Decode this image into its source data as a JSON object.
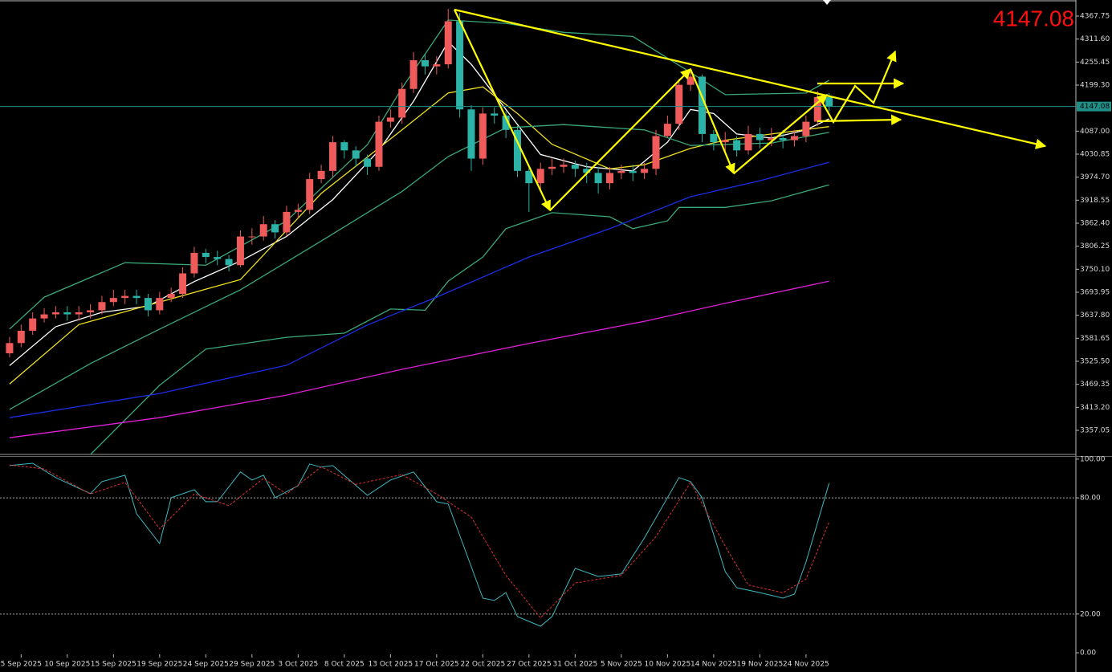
{
  "chart_data": [
    {
      "type": "candlestick",
      "x": [
        0,
        1,
        2,
        3,
        4,
        5,
        6,
        7,
        8,
        9,
        10,
        11,
        12,
        13,
        14,
        15,
        16,
        17,
        18,
        19,
        20,
        21,
        22,
        23,
        24,
        25,
        26,
        27,
        28,
        29,
        30,
        31,
        32,
        33,
        34,
        35,
        36,
        37,
        38,
        39,
        40,
        41,
        42,
        43,
        44,
        45,
        46,
        47,
        48,
        49,
        50,
        51,
        52,
        53,
        54,
        55,
        56,
        57,
        58,
        59,
        60,
        61,
        62,
        63,
        64,
        65,
        66,
        67,
        68,
        69,
        70,
        71
      ],
      "open": [
        3545,
        3570,
        3600,
        3630,
        3640,
        3645,
        3640,
        3645,
        3650,
        3670,
        3680,
        3685,
        3680,
        3650,
        3680,
        3690,
        3740,
        3790,
        3780,
        3775,
        3760,
        3830,
        3830,
        3860,
        3840,
        3890,
        3895,
        3970,
        3990,
        4060,
        4040,
        4020,
        4000,
        4110,
        4120,
        4190,
        4260,
        4245,
        4250,
        4355,
        4140,
        4020,
        4130,
        4125,
        4090,
        3990,
        3960,
        3995,
        4000,
        4005,
        3995,
        3985,
        3960,
        3985,
        3990,
        3985,
        3995,
        4075,
        4105,
        4200,
        4220,
        4080,
        4060,
        4065,
        4040,
        4080,
        4065,
        4070,
        4065,
        4075,
        4110,
        4170
      ],
      "high": [
        3585,
        3615,
        3645,
        3655,
        3660,
        3660,
        3660,
        3665,
        3685,
        3700,
        3700,
        3700,
        3690,
        3695,
        3705,
        3755,
        3805,
        3800,
        3795,
        3785,
        3845,
        3850,
        3880,
        3870,
        3905,
        3910,
        3985,
        4005,
        4075,
        4065,
        4050,
        4030,
        4125,
        4140,
        4205,
        4280,
        4275,
        4270,
        4385,
        4375,
        4150,
        4145,
        4145,
        4135,
        4100,
        4000,
        4010,
        4020,
        4020,
        4015,
        4010,
        4000,
        4000,
        4005,
        4005,
        4010,
        4090,
        4125,
        4215,
        4235,
        4225,
        4090,
        4085,
        4075,
        4100,
        4095,
        4095,
        4090,
        4090,
        4125,
        4185,
        4180
      ],
      "low": [
        3535,
        3560,
        3590,
        3620,
        3630,
        3625,
        3625,
        3630,
        3640,
        3660,
        3665,
        3665,
        3635,
        3640,
        3670,
        3680,
        3730,
        3765,
        3760,
        3745,
        3755,
        3810,
        3820,
        3825,
        3830,
        3875,
        3885,
        3960,
        3975,
        4020,
        4000,
        3980,
        3990,
        4095,
        4105,
        4180,
        4225,
        4225,
        4240,
        4120,
        3990,
        4005,
        4105,
        4070,
        3975,
        3890,
        3945,
        3980,
        3985,
        3975,
        3960,
        3935,
        3945,
        3970,
        3965,
        3970,
        3980,
        4070,
        4090,
        4185,
        4060,
        4040,
        4035,
        4025,
        4030,
        4045,
        4050,
        4045,
        4050,
        4060,
        4100,
        4135
      ],
      "close": [
        3570,
        3600,
        3630,
        3640,
        3645,
        3640,
        3645,
        3650,
        3670,
        3680,
        3685,
        3680,
        3650,
        3680,
        3690,
        3740,
        3790,
        3780,
        3775,
        3760,
        3830,
        3830,
        3860,
        3840,
        3890,
        3895,
        3970,
        3990,
        4060,
        4040,
        4020,
        4000,
        4110,
        4120,
        4190,
        4260,
        4245,
        4250,
        4355,
        4140,
        4020,
        4130,
        4125,
        4090,
        3990,
        3960,
        3995,
        4000,
        4005,
        3995,
        3985,
        3960,
        3985,
        3990,
        3985,
        3995,
        4075,
        4105,
        4200,
        4220,
        4080,
        4060,
        4065,
        4040,
        4080,
        4065,
        4070,
        4065,
        4075,
        4110,
        4170,
        4147.08
      ],
      "up_color": "#ef5a5a",
      "down_color": "#2bb3a8",
      "current_price": 4147.08,
      "current_price_color": "#1f8f88",
      "xlim": [
        -0.83,
        92.38
      ],
      "ylim": [
        3298.3,
        4403.0
      ],
      "yticks": [
        {
          "value": 4367.75,
          "label": "4367.75"
        },
        {
          "value": 4311.6,
          "label": "4311.60"
        },
        {
          "value": 4255.45,
          "label": "4255.45"
        },
        {
          "value": 4199.3,
          "label": "4199.30"
        },
        {
          "value": 4087,
          "label": "4087.00"
        },
        {
          "value": 4030.85,
          "label": "4030.85"
        },
        {
          "value": 3974.7,
          "label": "3974.70"
        },
        {
          "value": 3918.55,
          "label": "3918.55"
        },
        {
          "value": 3862.4,
          "label": "3862.40"
        },
        {
          "value": 3806.25,
          "label": "3806.25"
        },
        {
          "value": 3750.1,
          "label": "3750.10"
        },
        {
          "value": 3693.95,
          "label": "3693.95"
        },
        {
          "value": 3637.8,
          "label": "3637.80"
        },
        {
          "value": 3581.65,
          "label": "3581.65"
        },
        {
          "value": 3525.5,
          "label": "3525.50"
        },
        {
          "value": 3469.35,
          "label": "3469.35"
        },
        {
          "value": 3413.2,
          "label": "3413.20"
        },
        {
          "value": 3357.05,
          "label": "3357.05"
        }
      ],
      "overlays": [
        {
          "color": "#ffffff",
          "x": [
            0,
            4,
            8,
            12,
            16,
            20,
            24,
            28,
            32,
            35,
            38,
            40,
            43,
            46,
            50,
            54,
            57,
            59,
            61,
            63,
            66,
            69,
            71
          ],
          "values": [
            3515,
            3610,
            3645,
            3660,
            3720,
            3770,
            3830,
            3920,
            4040,
            4160,
            4305,
            4250,
            4140,
            4030,
            4000,
            3990,
            4060,
            4140,
            4130,
            4080,
            4070,
            4090,
            4117
          ]
        },
        {
          "color": "#f0e020",
          "x": [
            0,
            6,
            13,
            20,
            27,
            34,
            38,
            41,
            44,
            47,
            52,
            55,
            59,
            62,
            66,
            71
          ],
          "values": [
            3470,
            3615,
            3670,
            3725,
            3935,
            4090,
            4180,
            4195,
            4130,
            4055,
            3995,
            4005,
            4045,
            4065,
            4080,
            4098
          ]
        },
        {
          "color": "#3aa878",
          "x": [
            0,
            7,
            13,
            20,
            27,
            34,
            38,
            43,
            48,
            55,
            59,
            66,
            71
          ],
          "values": [
            3408,
            3520,
            3604,
            3700,
            3819,
            3940,
            4025,
            4095,
            4103,
            4090,
            4052,
            4058,
            4084
          ]
        },
        {
          "color": "#3aa878",
          "x": [
            0,
            3,
            10,
            17,
            24,
            31,
            34,
            38,
            43,
            48,
            54,
            59,
            62,
            69,
            71
          ],
          "values": [
            3604,
            3682,
            3766,
            3760,
            3868,
            4054,
            4192,
            4358,
            4350,
            4328,
            4318,
            4230,
            4176,
            4180,
            4211
          ]
        },
        {
          "color": "#3aa878",
          "x": [
            7,
            13,
            17,
            24,
            29,
            33,
            36,
            38,
            41,
            43,
            47,
            52,
            54,
            57,
            58,
            62,
            66,
            71
          ],
          "values": [
            3298,
            3467,
            3555,
            3584,
            3594,
            3653,
            3650,
            3721,
            3780,
            3849,
            3888,
            3878,
            3849,
            3868,
            3901,
            3901,
            3917,
            3956
          ]
        },
        {
          "color": "#1a2ee8",
          "x": [
            0,
            13,
            24,
            31,
            37,
            45,
            52,
            59,
            65,
            71
          ],
          "values": [
            3388,
            3447,
            3516,
            3614,
            3682,
            3780,
            3849,
            3927,
            3966,
            4011
          ]
        },
        {
          "color": "#e020d8",
          "x": [
            0,
            13,
            24,
            34,
            45,
            55,
            62,
            71
          ],
          "values": [
            3339,
            3388,
            3443,
            3506,
            3569,
            3623,
            3667,
            3721
          ]
        }
      ]
    },
    {
      "type": "line",
      "series": [
        {
          "color": "#3fb8c0",
          "x": [
            0,
            2,
            4,
            7,
            8,
            10,
            11,
            13,
            14,
            16,
            17,
            18,
            20,
            21,
            22,
            23,
            25,
            26,
            27,
            28,
            31,
            33,
            35,
            37,
            38,
            41,
            42,
            43,
            44,
            46,
            47,
            49,
            51,
            53,
            55,
            58,
            59,
            60,
            62,
            63,
            65,
            67,
            68,
            69,
            71
          ],
          "values": [
            96.7,
            97.9,
            90.5,
            82.2,
            88.4,
            91.7,
            71.8,
            56.4,
            80.1,
            84.2,
            78,
            78,
            93.4,
            89.2,
            91.7,
            80.1,
            86.3,
            97.5,
            95.9,
            96.7,
            81.3,
            89.2,
            93.4,
            78,
            76.8,
            28.2,
            27,
            31.1,
            18.7,
            13.7,
            18.7,
            43.6,
            39.4,
            40.7,
            59.3,
            90.5,
            88.4,
            80.1,
            41.9,
            33.6,
            31.1,
            28.2,
            30.3,
            46.9,
            87.6
          ]
        },
        {
          "color": "#e03030",
          "dashed": true,
          "x": [
            0,
            3,
            7,
            10,
            13,
            16,
            19,
            22,
            24,
            27,
            30,
            34,
            37,
            40,
            43,
            46,
            49,
            53,
            56,
            59,
            62,
            64,
            67,
            69,
            71
          ],
          "values": [
            97,
            95,
            82,
            88,
            64,
            82,
            76,
            90,
            82,
            96,
            87,
            92,
            82,
            70,
            40,
            18,
            36,
            40,
            60,
            88,
            55,
            35,
            31,
            38,
            67.6
          ]
        }
      ],
      "xlim": [
        -0.83,
        92.38
      ],
      "ylim": [
        -9.1,
        101.2
      ],
      "yticks": [
        {
          "value": 100,
          "label": "100.00"
        },
        {
          "value": 80,
          "label": "80.00"
        },
        {
          "value": 20,
          "label": "20.00"
        },
        {
          "value": 0,
          "label": "0.00"
        }
      ],
      "levels": [
        80,
        20
      ],
      "xticks": [
        {
          "value": 1,
          "label": "5 Sep 2025"
        },
        {
          "value": 5,
          "label": "10 Sep 2025"
        },
        {
          "value": 9,
          "label": "15 Sep 2025"
        },
        {
          "value": 13,
          "label": "19 Sep 2025"
        },
        {
          "value": 17,
          "label": "24 Sep 2025"
        },
        {
          "value": 21,
          "label": "29 Sep 2025"
        },
        {
          "value": 25,
          "label": "3 Oct 2025"
        },
        {
          "value": 29,
          "label": "8 Oct 2025"
        },
        {
          "value": 33,
          "label": "13 Oct 2025"
        },
        {
          "value": 37,
          "label": "17 Oct 2025"
        },
        {
          "value": 41,
          "label": "22 Oct 2025"
        },
        {
          "value": 45,
          "label": "27 Oct 2025"
        },
        {
          "value": 49,
          "label": "31 Oct 2025"
        },
        {
          "value": 53,
          "label": "5 Nov 2025"
        },
        {
          "value": 57,
          "label": "10 Nov 2025"
        },
        {
          "value": 61,
          "label": "14 Nov 2025"
        },
        {
          "value": 65,
          "label": "19 Nov 2025"
        },
        {
          "value": 69,
          "label": "24 Nov 2025"
        }
      ]
    }
  ]
}
